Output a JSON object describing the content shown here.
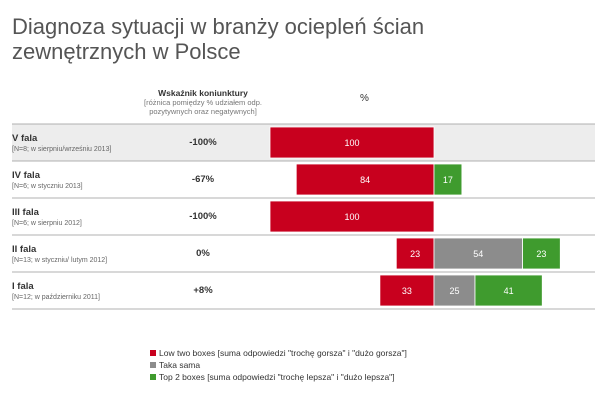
{
  "title": {
    "line1": "Diagnoza sytuacji w branży ociepleń ścian",
    "line2": "zewnętrznych w Polsce"
  },
  "header": {
    "indicator_title": "Wskaźnik koniunktury",
    "indicator_sub": "[różnica pomiędzy % udziałem odp. pozytywnych oraz negatywnych]",
    "percent_label": "%"
  },
  "colors": {
    "low": "#c8001e",
    "same": "#8c8c8c",
    "top": "#3f9b2e",
    "highlight_row": "#ededed"
  },
  "chart_data": {
    "type": "bar",
    "stacked": true,
    "orientation": "horizontal",
    "categories": [
      "V fala",
      "IV fala",
      "III fala",
      "II fala",
      "I fala"
    ],
    "category_notes": [
      "[N=8; w sierpniu/wrześniu 2013]",
      "[N=6; w styczniu 2013]",
      "[N=6; w sierpniu 2012]",
      "[N=13; w styczniu/ lutym 2012]",
      "[N=12; w październiku 2011]"
    ],
    "indicator": [
      "-100%",
      "-67%",
      "-100%",
      "0%",
      "+8%"
    ],
    "series": [
      {
        "name": "Low two boxes [suma odpowiedzi \"trochę gorsza\" i \"dużo gorsza\"]",
        "key": "low",
        "values": [
          100,
          84,
          100,
          23,
          33
        ]
      },
      {
        "name": "Taka sama",
        "key": "same",
        "values": [
          0,
          0,
          0,
          54,
          25
        ]
      },
      {
        "name": "Top 2 boxes [suma odpowiedzi \"trochę lepsza\" i \"dużo lepsza\"]",
        "key": "top",
        "values": [
          0,
          17,
          0,
          23,
          41
        ]
      }
    ],
    "highlighted_category": "V fala",
    "xlim": [
      0,
      100
    ]
  }
}
